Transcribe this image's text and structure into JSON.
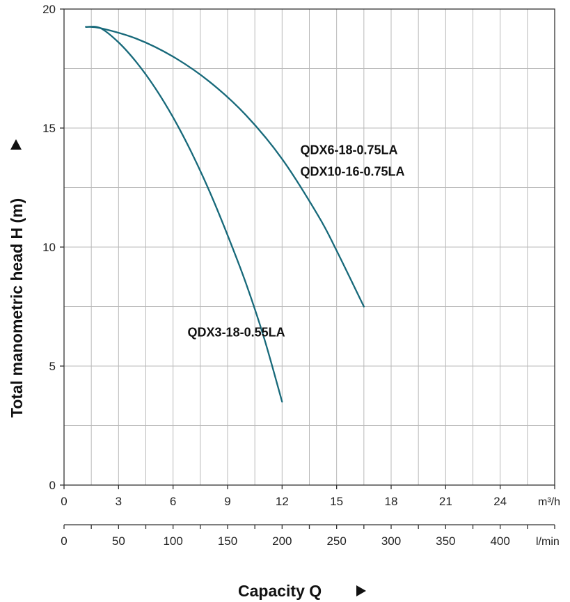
{
  "chart_data": {
    "type": "line",
    "ylabel": "Total manometric head H (m)",
    "xlabel": "Capacity Q",
    "ylim": [
      0,
      20
    ],
    "yticks": [
      "0",
      "5",
      "10",
      "15",
      "20"
    ],
    "xlim": [
      0,
      27
    ],
    "xticks": [
      "0",
      "3",
      "6",
      "9",
      "12",
      "15",
      "18",
      "21",
      "24"
    ],
    "x_unit_primary": "m³/h",
    "x2_unit": "l/min",
    "x2ticks": [
      "0",
      "50",
      "100",
      "150",
      "200",
      "250",
      "300",
      "350",
      "400"
    ],
    "grid": true,
    "line_color": "#17697a",
    "series": [
      {
        "name": "QDX3-18-0.55LA",
        "x": [
          1.2,
          2,
          3,
          4,
          5,
          6,
          7,
          8,
          9,
          10,
          11,
          12
        ],
        "y": [
          19.25,
          19.2,
          18.6,
          17.75,
          16.7,
          15.45,
          14.0,
          12.35,
          10.5,
          8.5,
          6.2,
          3.5
        ]
      },
      {
        "name": "QDX6-18-0.75LA\nQDX10-16-0.75LA",
        "x": [
          1.2,
          2,
          4,
          6,
          8,
          10,
          12,
          14,
          15,
          16.5
        ],
        "y": [
          19.25,
          19.2,
          18.75,
          18.0,
          16.95,
          15.55,
          13.7,
          11.3,
          9.85,
          7.5
        ]
      }
    ],
    "annotations": [
      {
        "text": "QDX3-18-0.55LA",
        "x": 6.8,
        "y": 6.25
      },
      {
        "text": "QDX6-18-0.75LA",
        "x": 13.0,
        "y": 13.9
      },
      {
        "text": "QDX10-16-0.75LA",
        "x": 13.0,
        "y": 13.0
      }
    ]
  }
}
